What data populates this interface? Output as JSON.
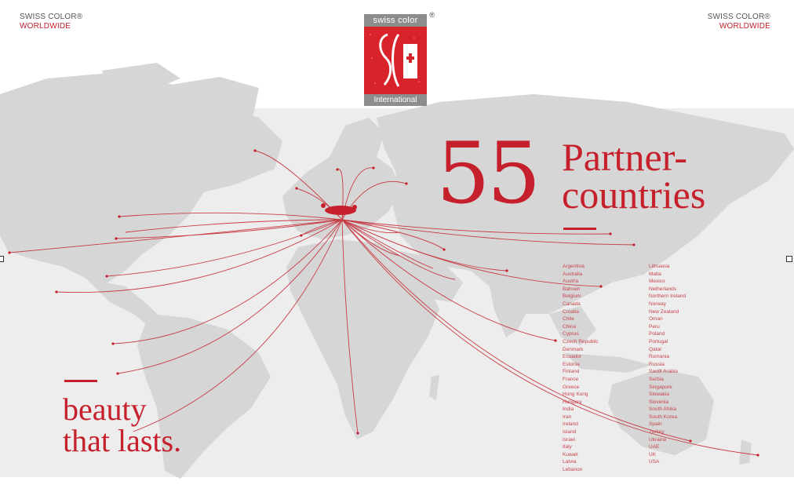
{
  "brand_left": {
    "line1": "SWISS COLOR®",
    "line2": "WORLDWIDE"
  },
  "brand_right": {
    "line1": "SWISS COLOR®",
    "line2": "WORLDWIDE"
  },
  "logo": {
    "top": "swiss color",
    "bottom": "International",
    "reg": "®"
  },
  "headline": {
    "number": "55",
    "line1": "Partner-",
    "line2": "countries"
  },
  "tagline": {
    "line1": "beauty",
    "line2": "that lasts."
  },
  "countries_col1": [
    "Argentina",
    "Australia",
    "Austria",
    "Bahrain",
    "Belgium",
    "Canada",
    "Croatia",
    "Chile",
    "China",
    "Cyprus",
    "Czech Republic",
    "Denmark",
    "Ecuador",
    "Estonia",
    "Finland",
    "France",
    "Greece",
    "Hong Kong",
    "Hungary",
    "India",
    "Iran",
    "Ireland",
    "Island",
    "Israel",
    "Italy",
    "Kuwait",
    "Latvia",
    "Lebanon"
  ],
  "countries_col2": [
    "Lithuania",
    "Malta",
    "Mexico",
    "Netherlands",
    "Northern Ireland",
    "Norway",
    "New Zealand",
    "Oman",
    "Peru",
    "Poland",
    "Portugal",
    "Qatar",
    "Rumania",
    "Russia",
    "Saudi Arabia",
    "Serbia",
    "Singapore",
    "Slowakia",
    "Slovenia",
    "South Afrika",
    "South Korea",
    "Spain",
    "Turkey",
    "Ukraine",
    "UAE",
    "UK",
    "USA"
  ],
  "colors": {
    "accent": "#c5202b",
    "map_land": "#d9d9d9",
    "map_band": "#ededed"
  }
}
